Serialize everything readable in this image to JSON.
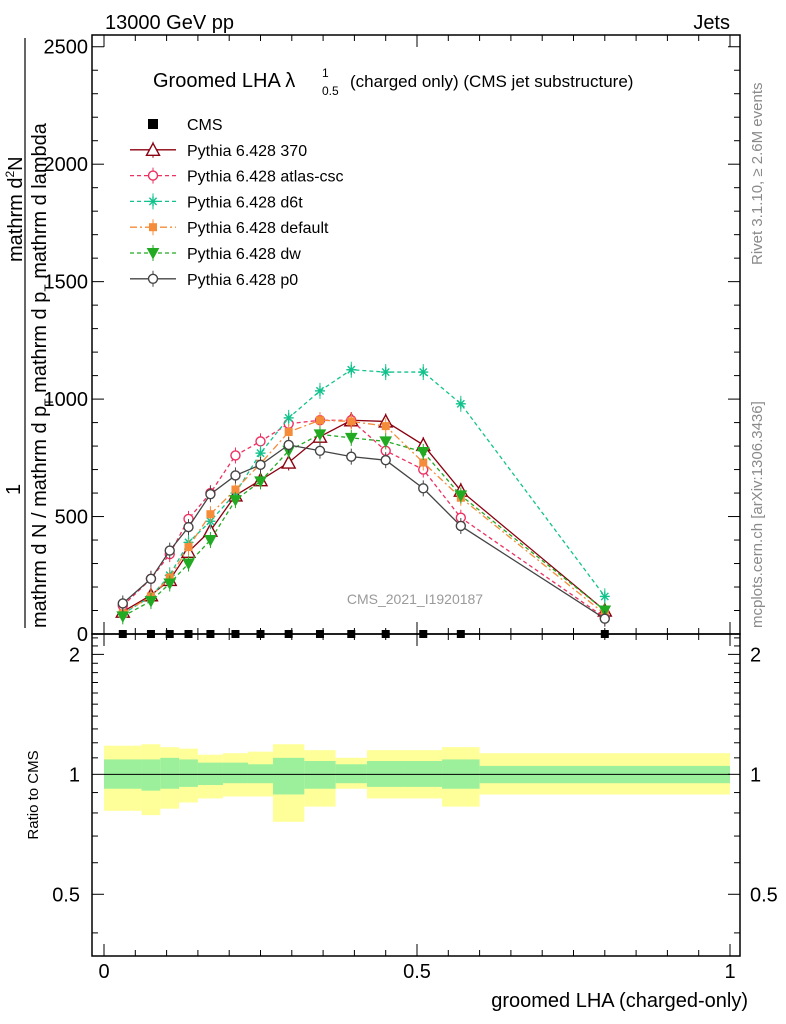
{
  "header": {
    "left": "13000 GeV pp",
    "right": "Jets"
  },
  "side_labels": {
    "rivet": "Rivet 3.1.10, ≥ 2.6M events",
    "mcplots": "mcplots.cern.ch [arXiv:1306.3436]"
  },
  "watermark": "CMS_2021_I1920187",
  "chart_data": [
    {
      "type": "line",
      "panel": "main",
      "title_main": "Groomed LHA ",
      "title_symbol": "λ",
      "title_sup": "1",
      "title_sub": "0.5",
      "title_rest": " (charged only) (CMS jet substructure)",
      "ylabel": "1/(mathrm d N / mathrm d p_T) mathrm d^2N / (mathrm d p_T mathrm d lambda)",
      "ylabel_parts": {
        "one": "1",
        "num_top": "mathrm d",
        "num_sup": "2",
        "num_bot": "N",
        "den_a": "mathrm d N / mathrm d p",
        "den_a_sub": "T",
        "den_b": " mathrm d p",
        "den_b_sub": "T",
        "den_c": " mathrm d lambda"
      },
      "xlim": [
        0,
        1
      ],
      "ylim": [
        0,
        2550
      ],
      "yticks": [
        0,
        500,
        1000,
        1500,
        2000,
        2500
      ],
      "ytick_labels": [
        "0",
        "500",
        "1000",
        "1500",
        "2000",
        "2500"
      ],
      "legend_position": "top-left",
      "x": [
        0.03,
        0.075,
        0.105,
        0.135,
        0.17,
        0.21,
        0.25,
        0.295,
        0.345,
        0.395,
        0.45,
        0.51,
        0.57,
        0.8
      ],
      "series": [
        {
          "name": "CMS",
          "style": "cms",
          "color": "#000000",
          "values": [
            0,
            0,
            0,
            0,
            0,
            0,
            0,
            0,
            0,
            0,
            0,
            0,
            0,
            0
          ]
        },
        {
          "name": "Pythia 6.428 370",
          "style": "solid",
          "marker": "triangle-open",
          "color": "#8b0010",
          "values": [
            95,
            165,
            230,
            350,
            440,
            590,
            655,
            730,
            840,
            910,
            905,
            805,
            610,
            100
          ]
        },
        {
          "name": "Pythia 6.428 atlas-csc",
          "style": "dashed",
          "marker": "circle-open",
          "color": "#ee3060",
          "values": [
            120,
            235,
            340,
            490,
            600,
            760,
            820,
            895,
            910,
            910,
            780,
            700,
            495,
            70
          ]
        },
        {
          "name": "Pythia 6.428 d6t",
          "style": "dashed",
          "marker": "star",
          "color": "#12c28c",
          "values": [
            85,
            160,
            250,
            390,
            480,
            600,
            770,
            920,
            1035,
            1125,
            1115,
            1115,
            980,
            160
          ]
        },
        {
          "name": "Pythia 6.428 default",
          "style": "dashdot",
          "marker": "square",
          "color": "#f58c3a",
          "values": [
            88,
            160,
            240,
            370,
            510,
            615,
            725,
            860,
            910,
            905,
            885,
            730,
            580,
            85
          ]
        },
        {
          "name": "Pythia 6.428 dw",
          "style": "dashed",
          "marker": "triangle-down",
          "color": "#22aa22",
          "values": [
            75,
            140,
            215,
            300,
            400,
            570,
            650,
            780,
            850,
            835,
            820,
            775,
            590,
            100
          ]
        },
        {
          "name": "Pythia 6.428 p0",
          "style": "solid",
          "marker": "circle-open",
          "color": "#444444",
          "values": [
            130,
            235,
            355,
            455,
            595,
            675,
            720,
            805,
            780,
            755,
            740,
            620,
            460,
            65
          ]
        }
      ]
    },
    {
      "type": "area",
      "panel": "ratio",
      "ylabel": "Ratio to CMS",
      "xlabel": "groomed LHA (charged-only)",
      "xlim": [
        0,
        1
      ],
      "ylim": [
        0.35,
        2.25
      ],
      "yticks": [
        0.5,
        1,
        2
      ],
      "ytick_labels": [
        "0.5",
        "1",
        "2"
      ],
      "xticks": [
        0,
        0.5,
        1
      ],
      "xtick_labels": [
        "0",
        "0.5",
        "1"
      ],
      "reference": 1,
      "bin_edges": [
        0,
        0.06,
        0.09,
        0.12,
        0.15,
        0.19,
        0.23,
        0.27,
        0.32,
        0.37,
        0.42,
        0.48,
        0.54,
        0.6,
        1.0
      ],
      "bands": [
        {
          "name": "stat",
          "color": "#9cf09c",
          "lower": [
            0.92,
            0.91,
            0.92,
            0.93,
            0.94,
            0.95,
            0.95,
            0.89,
            0.92,
            0.95,
            0.93,
            0.93,
            0.92,
            0.95
          ],
          "upper": [
            1.09,
            1.09,
            1.1,
            1.09,
            1.07,
            1.07,
            1.06,
            1.1,
            1.08,
            1.06,
            1.08,
            1.08,
            1.09,
            1.05
          ]
        },
        {
          "name": "total",
          "color": "#ffff99",
          "lower": [
            0.81,
            0.79,
            0.82,
            0.85,
            0.87,
            0.88,
            0.88,
            0.76,
            0.83,
            0.92,
            0.87,
            0.87,
            0.83,
            0.89
          ],
          "upper": [
            1.18,
            1.19,
            1.17,
            1.16,
            1.12,
            1.13,
            1.14,
            1.19,
            1.15,
            1.1,
            1.15,
            1.15,
            1.17,
            1.13
          ]
        }
      ]
    }
  ]
}
